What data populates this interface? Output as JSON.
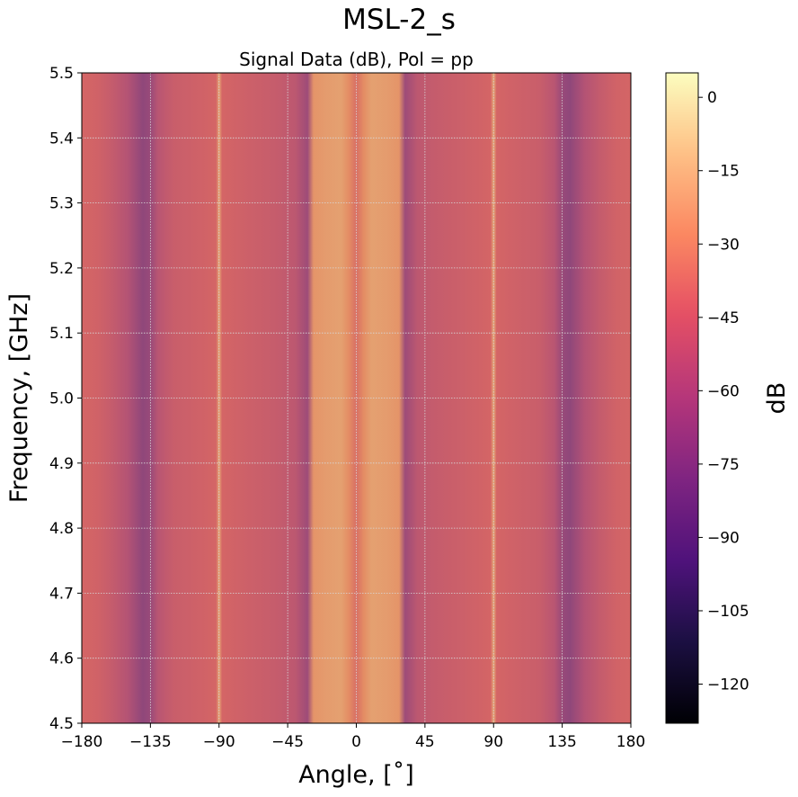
{
  "figure": {
    "suptitle": "MSL-2_s"
  },
  "chart_data": {
    "type": "heatmap",
    "title": "Signal Data (dB), Pol = pp",
    "xlabel": "Angle, [$^{\\circ}$]",
    "xlabel_display": "Angle, [˚]",
    "ylabel": "Frequency, [GHz]",
    "xlim": [
      -180,
      180
    ],
    "ylim": [
      4.5,
      5.5
    ],
    "x_ticks": [
      -180,
      -135,
      -90,
      -45,
      0,
      45,
      90,
      135,
      180
    ],
    "x_tick_labels": [
      "−180",
      "−135",
      "−90",
      "−45",
      "0",
      "45",
      "90",
      "135",
      "180"
    ],
    "y_ticks": [
      4.5,
      4.6,
      4.7,
      4.8,
      4.9,
      5.0,
      5.1,
      5.2,
      5.3,
      5.4,
      5.5
    ],
    "y_tick_labels": [
      "4.5",
      "4.6",
      "4.7",
      "4.8",
      "4.9",
      "5.0",
      "5.1",
      "5.2",
      "5.3",
      "5.4",
      "5.5"
    ],
    "grid": true,
    "colormap": "magma",
    "colorbar": {
      "label": "dB",
      "vmin": -128,
      "vmax": 5,
      "ticks": [
        0,
        -15,
        -30,
        -45,
        -60,
        -75,
        -90,
        -105,
        -120
      ],
      "tick_labels": [
        "0",
        "−15",
        "−30",
        "−45",
        "−60",
        "−75",
        "−90",
        "−105",
        "−120"
      ]
    },
    "angular_profile_db": {
      "angles": [
        -180,
        -170,
        -160,
        -150,
        -145,
        -140,
        -135,
        -130,
        -120,
        -110,
        -100,
        -92,
        -90,
        -88,
        -80,
        -70,
        -60,
        -50,
        -40,
        -32,
        -28,
        -20,
        -10,
        -5,
        0,
        5,
        10,
        20,
        28,
        32,
        40,
        50,
        60,
        70,
        80,
        88,
        90,
        92,
        100,
        110,
        120,
        130,
        135,
        140,
        145,
        150,
        160,
        170,
        180
      ],
      "values": [
        -44,
        -46,
        -52,
        -60,
        -68,
        -76,
        -72,
        -58,
        -50,
        -48,
        -46,
        -44,
        -18,
        -44,
        -46,
        -48,
        -50,
        -52,
        -56,
        -70,
        -25,
        -22,
        -20,
        -28,
        -40,
        -28,
        -20,
        -22,
        -25,
        -70,
        -56,
        -52,
        -50,
        -48,
        -46,
        -44,
        -18,
        -44,
        -46,
        -48,
        -50,
        -58,
        -72,
        -76,
        -68,
        -60,
        -52,
        -46,
        -44
      ]
    }
  }
}
